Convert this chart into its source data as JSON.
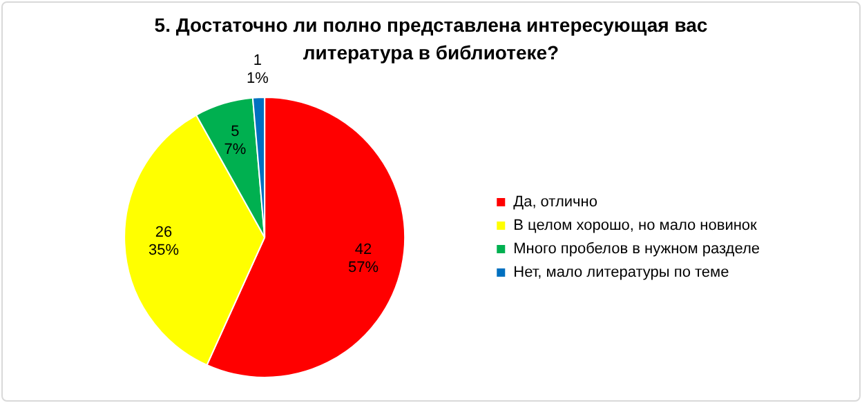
{
  "chart_data": {
    "type": "pie",
    "title": "5. Достаточно ли полно представлена интересующая вас литература в библиотеке?",
    "categories": [
      "Да, отлично",
      "В целом хорошо, но мало новинок",
      "Много пробелов в нужном разделе",
      "Нет, мало литературы по теме"
    ],
    "values": [
      42,
      26,
      5,
      1
    ],
    "colors": [
      "#ff0000",
      "#ffff00",
      "#00b050",
      "#0070c0"
    ],
    "value_labels": [
      "42\n57%",
      "26\n35%",
      "5\n7%",
      "1\n1%"
    ],
    "legend": "right"
  }
}
